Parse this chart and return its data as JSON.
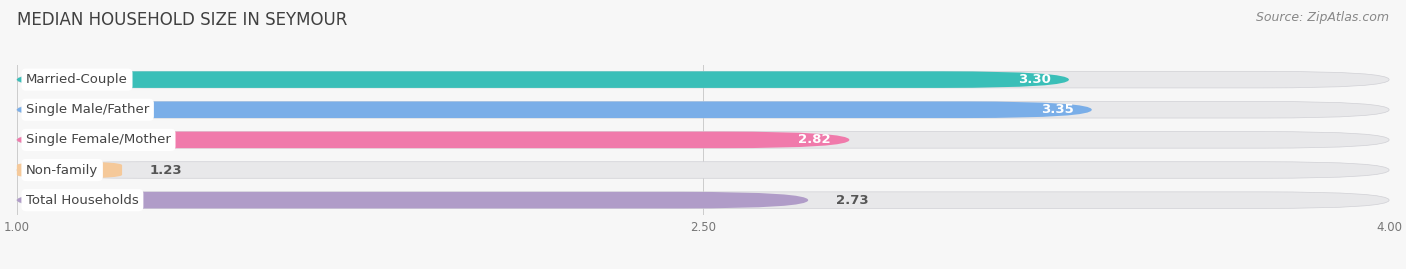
{
  "title": "MEDIAN HOUSEHOLD SIZE IN SEYMOUR",
  "source": "Source: ZipAtlas.com",
  "categories": [
    "Married-Couple",
    "Single Male/Father",
    "Single Female/Mother",
    "Non-family",
    "Total Households"
  ],
  "values": [
    3.3,
    3.35,
    2.82,
    1.23,
    2.73
  ],
  "bar_colors": [
    "#3abfb8",
    "#7aaee8",
    "#f07aab",
    "#f5c99a",
    "#b09cc8"
  ],
  "value_inside": [
    true,
    true,
    true,
    false,
    false
  ],
  "xmin": 1.0,
  "xmax": 4.0,
  "xticks": [
    1.0,
    2.5,
    4.0
  ],
  "background_color": "#f7f7f7",
  "bar_bg_color": "#e8e8ea",
  "row_bg_color": "#eeeeef",
  "title_fontsize": 12,
  "source_fontsize": 9,
  "value_fontsize": 9.5,
  "cat_fontsize": 9.5
}
